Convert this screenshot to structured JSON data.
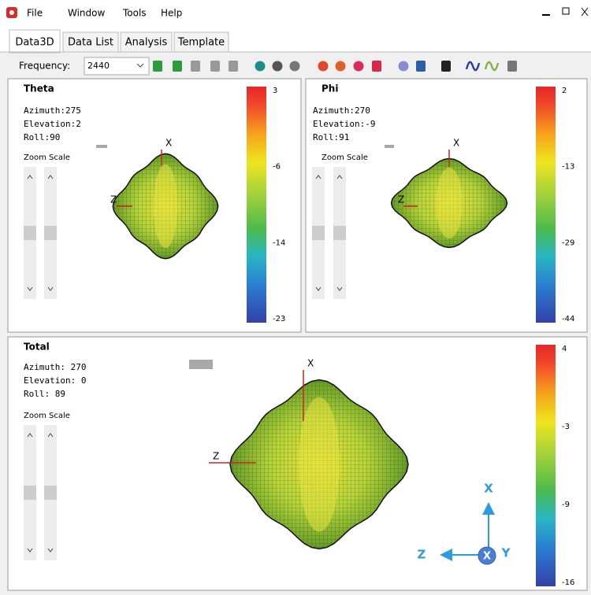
{
  "menu": {
    "items": [
      "File",
      "Window",
      "Tools",
      "Help"
    ]
  },
  "tabs": [
    "Data3D",
    "Data List",
    "Analysis",
    "Template"
  ],
  "toolbar": {
    "frequency_label": "Frequency:",
    "frequency_value": "2440"
  },
  "panels": [
    {
      "title": "Theta",
      "azimuth": "Azimuth:275",
      "elevation": "Elevation:2",
      "roll": "Roll:90",
      "zoom_label": "Zoom Scale",
      "axis_x": "X",
      "axis_z": "Z",
      "colorbar_ticks": [
        "3",
        "-6",
        "-14",
        "-23"
      ]
    },
    {
      "title": "Phi",
      "azimuth": "Azimuth:270",
      "elevation": "Elevation:-9",
      "roll": "Roll:91",
      "zoom_label": "Zoom Scale",
      "axis_x": "X",
      "axis_z": "Z",
      "colorbar_ticks": [
        "2",
        "-13",
        "-29",
        "-44"
      ]
    },
    {
      "title": "Total",
      "azimuth": "Azimuth: 270",
      "elevation": "Elevation: 0",
      "roll": "Roll: 89",
      "zoom_label": "Zoom Scale",
      "axis_x": "X",
      "axis_z": "Z",
      "colorbar_ticks": [
        "4",
        "-3",
        "-9",
        "-16"
      ]
    }
  ],
  "orientation": {
    "x": "X",
    "z": "Z",
    "y": "Y",
    "center": "X"
  }
}
